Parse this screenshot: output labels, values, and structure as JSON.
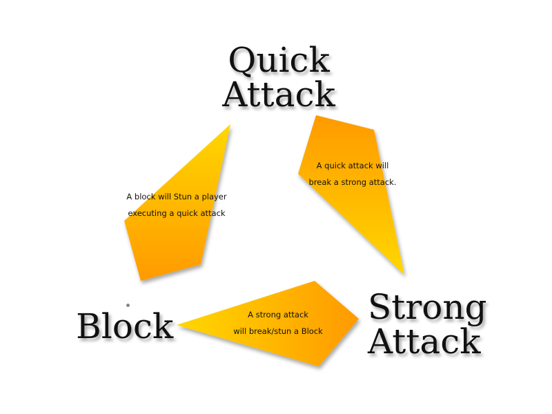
{
  "nodes": {
    "quick_attack": {
      "line1": "Quick",
      "line2": "Attack"
    },
    "strong_attack": {
      "line1": "Strong",
      "line2": "Attack"
    },
    "block": {
      "line1": "Block"
    }
  },
  "edges": {
    "block_to_quick": {
      "line1": "A block will Stun a player",
      "line2": "executing a quick attack"
    },
    "quick_to_strong": {
      "line1": "A quick attack will",
      "line2": "break a strong attack."
    },
    "strong_to_block": {
      "line1": "A strong attack",
      "line2": "will break/stun a Block"
    }
  },
  "colors": {
    "arrow_light": "#ffd700",
    "arrow_dark": "#ff9a00",
    "label_text": "#111111"
  }
}
